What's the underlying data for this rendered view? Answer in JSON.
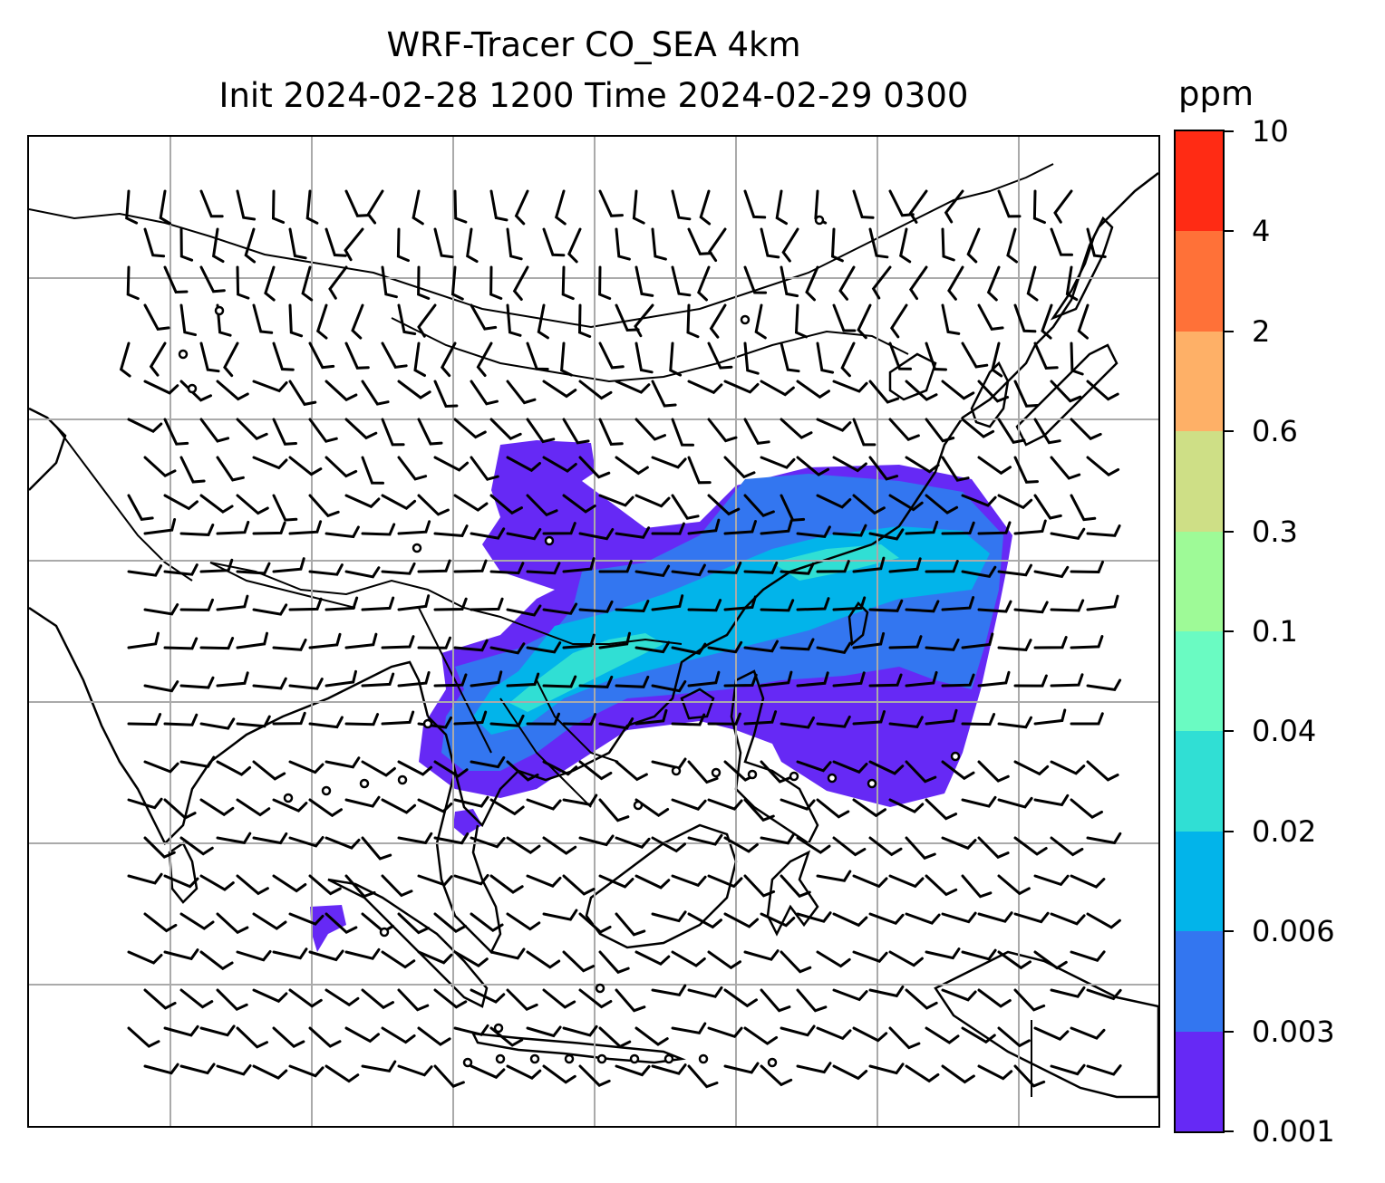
{
  "title": {
    "line1": "WRF-Tracer CO_SEA 4km",
    "line2": "Init 2024-02-28 1200 Time 2024-02-29 0300"
  },
  "colorbar": {
    "unit": "ppm",
    "levels": [
      "0.001",
      "0.003",
      "0.006",
      "0.02",
      "0.04",
      "0.1",
      "0.3",
      "0.6",
      "2",
      "4",
      "10"
    ],
    "colors": [
      "#6629f5",
      "#3376f0",
      "#02b4ea",
      "#30dfd4",
      "#6afbc2",
      "#9efa97",
      "#cedf86",
      "#feb067",
      "#ff7138",
      "#ff2b14"
    ]
  },
  "map": {
    "projection": "regional lat-lon grid",
    "region": "Southeast Asia and East Asia",
    "gridlines": true,
    "features": [
      "coastlines",
      "country borders",
      "wind barbs",
      "CO tracer concentration plume"
    ],
    "icons": [
      "wind-barb-icon",
      "calm-wind-circle-icon"
    ]
  }
}
